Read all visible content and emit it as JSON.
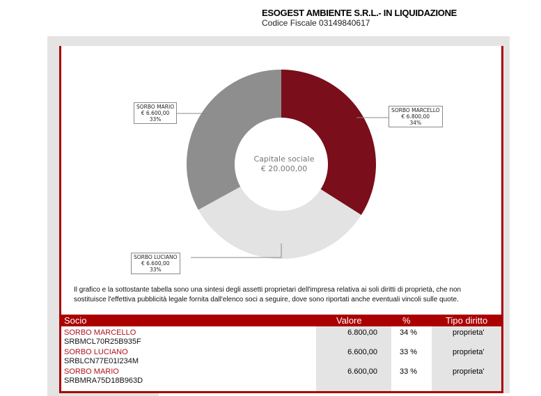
{
  "header": {
    "company": "ESOGEST AMBIENTE S.R.L.- IN LIQUIDAZIONE",
    "fiscal_code": "Codice Fiscale 03149840617"
  },
  "chart_data": {
    "type": "pie",
    "variant": "donut",
    "center_label": [
      "Capitale sociale",
      "€ 20.000,00"
    ],
    "slices": [
      {
        "name": "SORBO MARCELLO",
        "value": 6800,
        "value_label": "€ 6.800,00",
        "percent_label": "34%",
        "percent": 34,
        "color": "#7a0e1a"
      },
      {
        "name": "SORBO LUCIANO",
        "value": 6600,
        "value_label": "€ 6.600,00",
        "percent_label": "33%",
        "percent": 33,
        "color": "#e3e3e3"
      },
      {
        "name": "SORBO MARIO",
        "value": 6600,
        "value_label": "€ 6.600,00",
        "percent_label": "33%",
        "percent": 33,
        "color": "#8e8e8e"
      }
    ]
  },
  "note": "Il grafico e la sottostante tabella sono una sintesi degli assetti proprietari dell'impresa relativa ai soli diritti di proprietà, che non sostituisce l'effettiva pubblicità legale fornita dall'elenco soci a seguire, dove sono riportati anche eventuali vincoli sulle quote.",
  "table": {
    "headers": {
      "socio": "Socio",
      "valore": "Valore",
      "percent": "%",
      "tipo": "Tipo diritto"
    },
    "rows": [
      {
        "name": "SORBO MARCELLO",
        "cf": "SRBMCL70R25B935F",
        "valore": "6.800,00",
        "percent": "34 %",
        "tipo": "proprieta'"
      },
      {
        "name": "SORBO LUCIANO",
        "cf": "SRBLCN77E01I234M",
        "valore": "6.600,00",
        "percent": "33 %",
        "tipo": "proprieta'"
      },
      {
        "name": "SORBO MARIO",
        "cf": "SRBMRA75D18B963D",
        "valore": "6.600,00",
        "percent": "33 %",
        "tipo": "proprieta'"
      }
    ]
  }
}
